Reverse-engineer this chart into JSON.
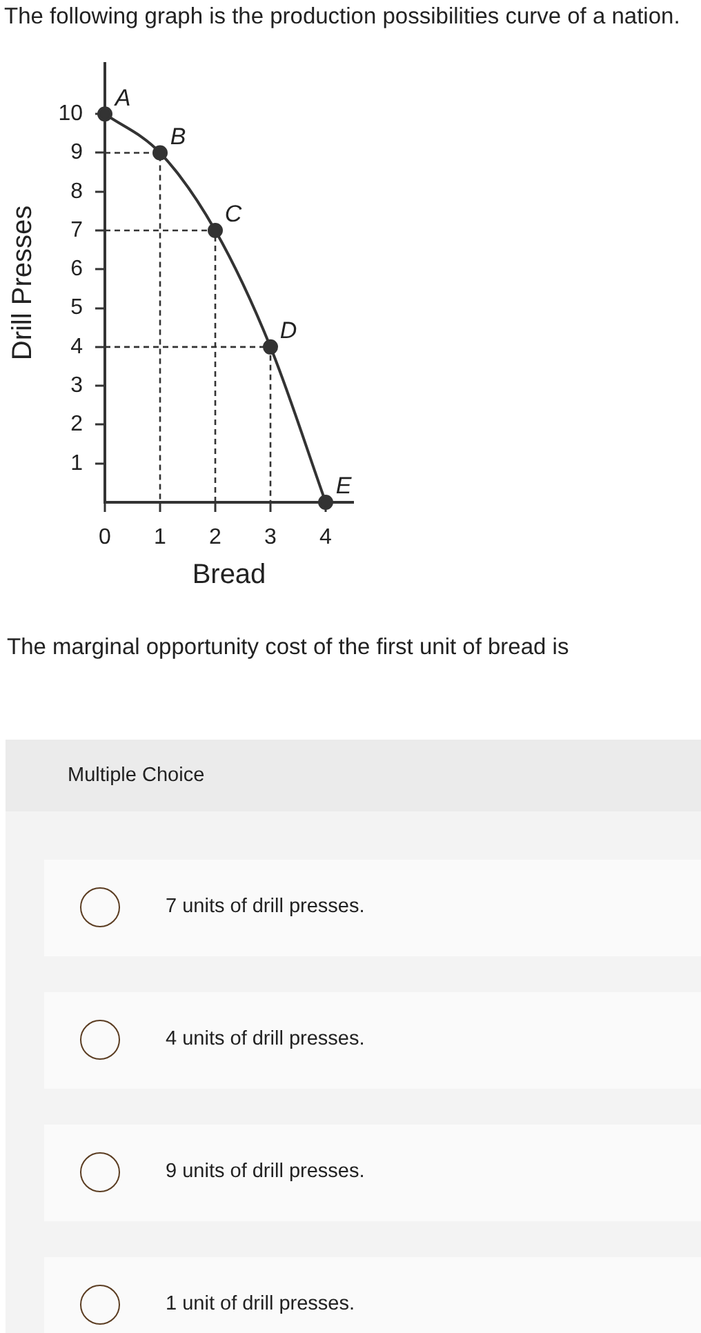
{
  "chart_data": {
    "type": "line",
    "title": "The following graph is the production possibilities curve of a nation.",
    "xlabel": "Bread",
    "ylabel": "Drill Presses",
    "x": [
      0,
      1,
      2,
      3,
      4
    ],
    "series": [
      {
        "color": "#333333",
        "values": [
          10,
          9,
          7,
          4,
          0
        ]
      },
      {
        "x": [
          0,
          1,
          1
        ],
        "values": [
          9,
          9,
          0
        ],
        "color": "#333333",
        "line_style": "dashed",
        "marker": "none"
      },
      {
        "x": [
          0,
          2,
          2
        ],
        "values": [
          7,
          7,
          0
        ],
        "color": "#333333",
        "line_style": "dashed",
        "marker": "none"
      },
      {
        "x": [
          0,
          3,
          3
        ],
        "values": [
          4,
          4,
          0
        ],
        "color": "#333333",
        "line_style": "dashed",
        "marker": "none"
      }
    ],
    "xlim": [
      0,
      4.5
    ],
    "ylim": [
      0,
      11.3
    ],
    "xticks": [
      0,
      1,
      2,
      3,
      4
    ],
    "yticks": [
      1,
      2,
      3,
      4,
      5,
      6,
      7,
      8,
      9,
      10
    ],
    "marker": "circle",
    "line_style": "solid",
    "grid": false,
    "legend": false,
    "annotations": [
      {
        "text": "A",
        "x": 0,
        "y": 10
      },
      {
        "text": "B",
        "x": 1,
        "y": 9
      },
      {
        "text": "C",
        "x": 2,
        "y": 7
      },
      {
        "text": "D",
        "x": 3,
        "y": 4
      },
      {
        "text": "E",
        "x": 4,
        "y": 0
      },
      "The marginal opportunity cost of the first unit of bread is",
      "Multiple Choice",
      "7 units of drill presses.",
      "4 units of drill presses.",
      "9 units of drill presses.",
      "1 unit of drill presses."
    ]
  }
}
